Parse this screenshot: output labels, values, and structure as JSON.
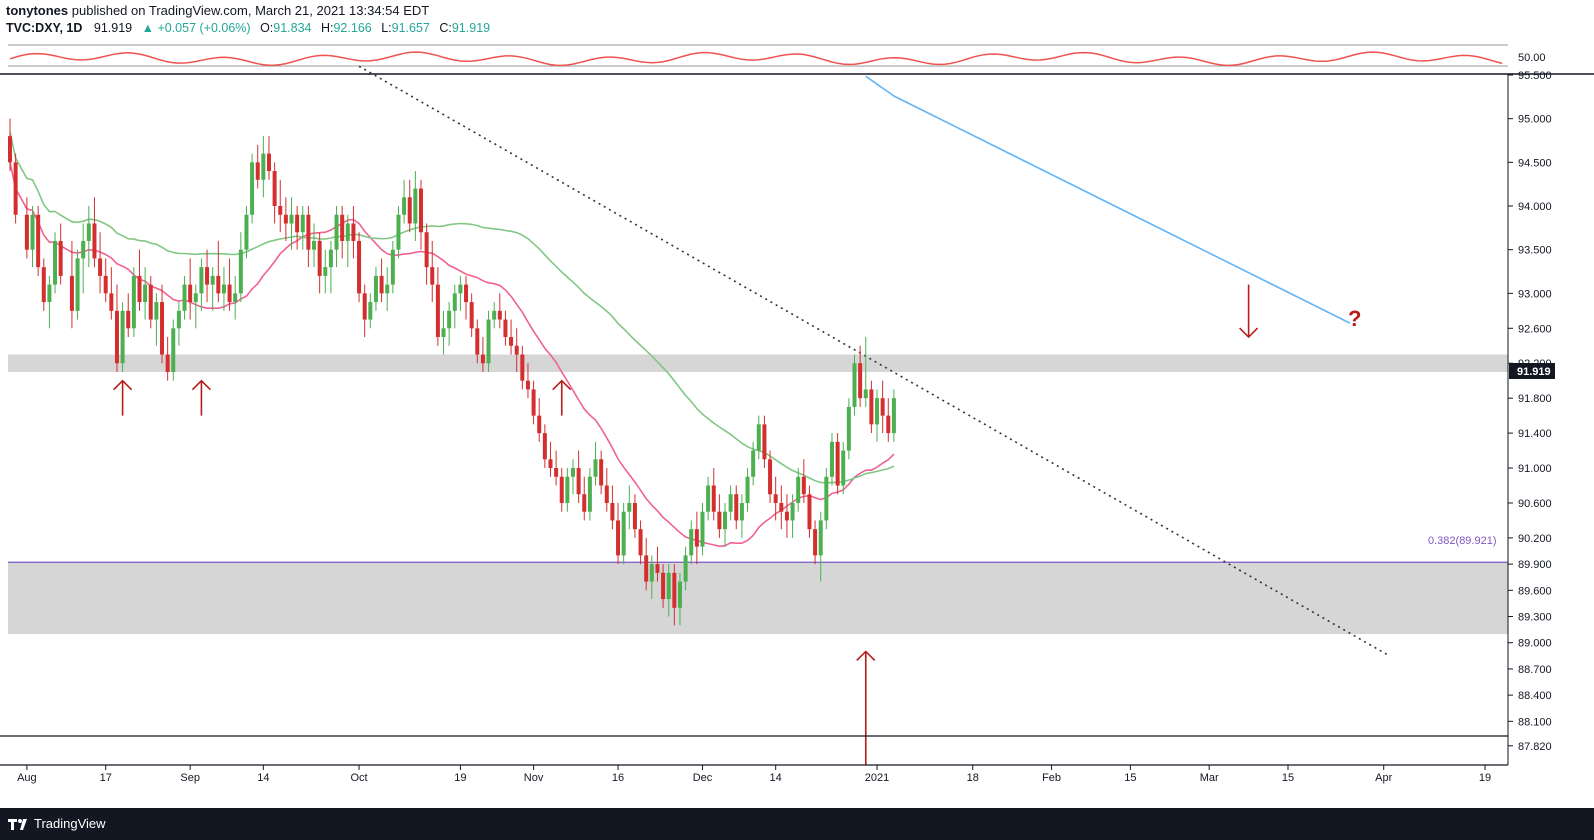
{
  "header": {
    "author": "tonytones",
    "published": "published on TradingView.com, March 21, 2021 13:34:54 EDT",
    "symbol": "TVC:DXY, 1D",
    "last": "91.919",
    "change": "▲ +0.057 (+0.06%)",
    "o_label": "O:",
    "o_value": "91.834",
    "h_label": "H:",
    "h_value": "92.166",
    "l_label": "L:",
    "l_value": "91.657",
    "c_label": "C:",
    "c_value": "91.919"
  },
  "footer": {
    "brand": "TradingView"
  },
  "colors": {
    "up": "#4caf50",
    "down": "#d32f2f",
    "ma_fast": "#f06292",
    "ma_mid": "#81c784",
    "ma_slow": "#64b5f6",
    "rsi": "#ef5350",
    "fib": "#7e57c2",
    "zone": "#d6d6d6",
    "arrow": "#b71c1c"
  },
  "chart_data": {
    "type": "candlestick",
    "symbol": "TVC:DXY",
    "interval": "1D",
    "price_axis": {
      "min": 87.6,
      "max": 95.5,
      "ticks": [
        "95.500",
        "95.000",
        "94.500",
        "94.000",
        "93.500",
        "93.000",
        "92.600",
        "92.200",
        "91.800",
        "91.400",
        "91.000",
        "90.600",
        "90.200",
        "89.900",
        "89.600",
        "89.300",
        "89.000",
        "88.700",
        "88.400",
        "88.100",
        "87.820"
      ],
      "current_price": "91.919"
    },
    "rsi_axis": {
      "min": 46,
      "max": 54,
      "ticks": [
        "50.00"
      ]
    },
    "time_axis": {
      "labels": [
        {
          "text": "Aug",
          "day": 3
        },
        {
          "text": "17",
          "day": 17
        },
        {
          "text": "Sep",
          "day": 32
        },
        {
          "text": "14",
          "day": 45
        },
        {
          "text": "Oct",
          "day": 62
        },
        {
          "text": "19",
          "day": 80
        },
        {
          "text": "Nov",
          "day": 93
        },
        {
          "text": "16",
          "day": 108
        },
        {
          "text": "Dec",
          "day": 123
        },
        {
          "text": "14",
          "day": 136
        },
        {
          "text": "2021",
          "day": 154
        },
        {
          "text": "18",
          "day": 171
        },
        {
          "text": "Feb",
          "day": 185
        },
        {
          "text": "15",
          "day": 199
        },
        {
          "text": "Mar",
          "day": 213
        },
        {
          "text": "15",
          "day": 227
        },
        {
          "text": "Apr",
          "day": 244
        },
        {
          "text": "19",
          "day": 262
        }
      ]
    },
    "annotations": {
      "fib_label": "0.382(89.921)",
      "fib_level": 89.921,
      "question_mark": "?"
    },
    "zones": [
      {
        "from": 92.1,
        "to": 92.3
      },
      {
        "from": 89.1,
        "to": 89.92
      }
    ],
    "arrows": [
      {
        "day": 20,
        "from": 91.6,
        "to": 92.0,
        "dir": "up"
      },
      {
        "day": 34,
        "from": 91.6,
        "to": 92.0,
        "dir": "up"
      },
      {
        "day": 98,
        "from": 91.6,
        "to": 92.0,
        "dir": "up"
      },
      {
        "day": 152,
        "from": 87.6,
        "to": 88.9,
        "dir": "up"
      },
      {
        "day": 220,
        "from": 93.1,
        "to": 92.5,
        "dir": "down"
      }
    ],
    "trendline": {
      "start": [
        62,
        95.6
      ],
      "end": [
        245,
        88.85
      ]
    },
    "candles": [
      [
        0,
        94.8,
        95.0,
        94.4,
        94.5
      ],
      [
        1,
        94.5,
        94.6,
        93.8,
        93.9
      ],
      [
        3,
        93.9,
        94.1,
        93.4,
        93.5
      ],
      [
        4,
        93.5,
        94.0,
        93.3,
        93.9
      ],
      [
        5,
        93.9,
        94.0,
        93.2,
        93.3
      ],
      [
        6,
        93.3,
        93.4,
        92.8,
        92.9
      ],
      [
        7,
        92.9,
        93.2,
        92.6,
        93.1
      ],
      [
        8,
        93.1,
        93.7,
        93.0,
        93.6
      ],
      [
        9,
        93.6,
        93.8,
        93.1,
        93.2
      ],
      [
        11,
        93.2,
        93.6,
        92.6,
        92.8
      ],
      [
        12,
        92.8,
        93.5,
        92.7,
        93.4
      ],
      [
        13,
        93.4,
        93.8,
        93.0,
        93.6
      ],
      [
        14,
        93.6,
        94.0,
        93.3,
        93.8
      ],
      [
        15,
        93.8,
        94.1,
        93.3,
        93.4
      ],
      [
        16,
        93.4,
        93.7,
        93.0,
        93.2
      ],
      [
        17,
        93.2,
        93.4,
        92.9,
        93.0
      ],
      [
        18,
        93.0,
        93.3,
        92.7,
        92.8
      ],
      [
        19,
        92.8,
        93.1,
        92.1,
        92.2
      ],
      [
        20,
        92.2,
        92.9,
        92.1,
        92.8
      ],
      [
        21,
        92.8,
        93.0,
        92.5,
        92.6
      ],
      [
        22,
        92.6,
        93.3,
        92.5,
        93.2
      ],
      [
        23,
        93.2,
        93.5,
        92.8,
        92.9
      ],
      [
        24,
        92.9,
        93.3,
        92.7,
        93.1
      ],
      [
        25,
        93.1,
        93.2,
        92.6,
        92.7
      ],
      [
        26,
        92.7,
        93.0,
        92.4,
        92.9
      ],
      [
        27,
        92.9,
        93.1,
        92.2,
        92.3
      ],
      [
        28,
        92.3,
        92.5,
        92.0,
        92.1
      ],
      [
        29,
        92.1,
        92.7,
        92.0,
        92.6
      ],
      [
        30,
        92.6,
        92.9,
        92.4,
        92.8
      ],
      [
        31,
        92.8,
        93.2,
        92.7,
        93.1
      ],
      [
        32,
        93.1,
        93.4,
        92.7,
        92.9
      ],
      [
        33,
        92.9,
        93.1,
        92.6,
        93.0
      ],
      [
        34,
        93.0,
        93.4,
        92.8,
        93.3
      ],
      [
        35,
        93.3,
        93.5,
        92.9,
        93.1
      ],
      [
        36,
        93.1,
        93.3,
        92.8,
        93.2
      ],
      [
        37,
        93.2,
        93.6,
        92.9,
        93.0
      ],
      [
        38,
        93.0,
        93.3,
        92.8,
        93.1
      ],
      [
        39,
        93.1,
        93.4,
        92.8,
        92.9
      ],
      [
        40,
        92.9,
        93.2,
        92.7,
        93.0
      ],
      [
        41,
        93.0,
        93.7,
        92.9,
        93.5
      ],
      [
        42,
        93.5,
        94.0,
        93.4,
        93.9
      ],
      [
        43,
        93.9,
        94.6,
        93.8,
        94.5
      ],
      [
        44,
        94.5,
        94.7,
        94.2,
        94.3
      ],
      [
        45,
        94.3,
        94.8,
        94.1,
        94.6
      ],
      [
        46,
        94.6,
        94.8,
        94.3,
        94.4
      ],
      [
        47,
        94.4,
        94.5,
        93.8,
        94.0
      ],
      [
        48,
        94.0,
        94.3,
        93.7,
        93.9
      ],
      [
        49,
        93.9,
        94.1,
        93.6,
        93.8
      ],
      [
        50,
        93.8,
        94.1,
        93.5,
        93.9
      ],
      [
        51,
        93.9,
        94.0,
        93.5,
        93.7
      ],
      [
        52,
        93.7,
        94.0,
        93.5,
        93.9
      ],
      [
        53,
        93.9,
        94.0,
        93.3,
        93.5
      ],
      [
        54,
        93.5,
        93.8,
        93.3,
        93.6
      ],
      [
        55,
        93.6,
        93.7,
        93.0,
        93.2
      ],
      [
        56,
        93.2,
        93.5,
        93.0,
        93.3
      ],
      [
        57,
        93.3,
        93.6,
        93.0,
        93.5
      ],
      [
        58,
        93.5,
        94.0,
        93.3,
        93.9
      ],
      [
        59,
        93.9,
        94.0,
        93.4,
        93.6
      ],
      [
        60,
        93.6,
        93.9,
        93.3,
        93.8
      ],
      [
        61,
        93.8,
        94.0,
        93.4,
        93.6
      ],
      [
        62,
        93.6,
        93.7,
        92.9,
        93.0
      ],
      [
        63,
        93.0,
        93.1,
        92.5,
        92.7
      ],
      [
        64,
        92.7,
        93.0,
        92.6,
        92.9
      ],
      [
        65,
        92.9,
        93.3,
        92.8,
        93.2
      ],
      [
        66,
        93.2,
        93.4,
        92.9,
        93.0
      ],
      [
        67,
        93.0,
        93.3,
        92.8,
        93.1
      ],
      [
        68,
        93.1,
        93.6,
        93.0,
        93.5
      ],
      [
        69,
        93.5,
        94.0,
        93.4,
        93.9
      ],
      [
        70,
        93.9,
        94.3,
        93.8,
        94.1
      ],
      [
        71,
        94.1,
        94.3,
        93.7,
        93.8
      ],
      [
        72,
        93.8,
        94.4,
        93.6,
        94.2
      ],
      [
        73,
        94.2,
        94.3,
        93.5,
        93.7
      ],
      [
        74,
        93.7,
        93.8,
        93.1,
        93.3
      ],
      [
        75,
        93.3,
        93.6,
        92.9,
        93.1
      ],
      [
        76,
        93.1,
        93.3,
        92.4,
        92.5
      ],
      [
        77,
        92.5,
        92.8,
        92.3,
        92.6
      ],
      [
        78,
        92.6,
        92.9,
        92.4,
        92.8
      ],
      [
        79,
        92.8,
        93.1,
        92.6,
        93.0
      ],
      [
        80,
        93.0,
        93.2,
        92.8,
        93.1
      ],
      [
        81,
        93.1,
        93.2,
        92.7,
        92.9
      ],
      [
        82,
        92.9,
        93.0,
        92.5,
        92.6
      ],
      [
        83,
        92.6,
        92.7,
        92.2,
        92.3
      ],
      [
        84,
        92.3,
        92.5,
        92.1,
        92.2
      ],
      [
        85,
        92.2,
        92.8,
        92.1,
        92.7
      ],
      [
        86,
        92.7,
        92.9,
        92.6,
        92.8
      ],
      [
        87,
        92.8,
        93.0,
        92.6,
        92.7
      ],
      [
        88,
        92.7,
        92.8,
        92.4,
        92.5
      ],
      [
        89,
        92.5,
        92.7,
        92.3,
        92.4
      ],
      [
        90,
        92.4,
        92.6,
        92.1,
        92.3
      ],
      [
        91,
        92.3,
        92.4,
        91.9,
        92.0
      ],
      [
        92,
        92.0,
        92.2,
        91.8,
        91.9
      ],
      [
        93,
        91.9,
        92.0,
        91.5,
        91.6
      ],
      [
        94,
        91.6,
        91.8,
        91.3,
        91.4
      ],
      [
        95,
        91.4,
        91.5,
        91.0,
        91.1
      ],
      [
        96,
        91.1,
        91.3,
        90.9,
        91.0
      ],
      [
        97,
        91.0,
        91.2,
        90.8,
        90.9
      ],
      [
        98,
        90.9,
        91.0,
        90.5,
        90.6
      ],
      [
        99,
        90.6,
        91.0,
        90.5,
        90.9
      ],
      [
        100,
        90.9,
        91.1,
        90.7,
        91.0
      ],
      [
        101,
        91.0,
        91.2,
        90.6,
        90.7
      ],
      [
        102,
        90.7,
        90.9,
        90.4,
        90.5
      ],
      [
        103,
        90.5,
        91.0,
        90.4,
        90.9
      ],
      [
        104,
        90.9,
        91.3,
        90.8,
        91.1
      ],
      [
        105,
        91.1,
        91.2,
        90.7,
        90.8
      ],
      [
        106,
        90.8,
        91.0,
        90.5,
        90.6
      ],
      [
        107,
        90.6,
        90.8,
        90.3,
        90.4
      ],
      [
        108,
        90.4,
        90.6,
        89.9,
        90.0
      ],
      [
        109,
        90.0,
        90.6,
        89.9,
        90.5
      ],
      [
        110,
        90.5,
        90.8,
        90.3,
        90.6
      ],
      [
        111,
        90.6,
        90.7,
        90.2,
        90.3
      ],
      [
        112,
        90.3,
        90.4,
        89.9,
        90.0
      ],
      [
        113,
        90.0,
        90.2,
        89.6,
        89.7
      ],
      [
        114,
        89.7,
        90.0,
        89.5,
        89.9
      ],
      [
        115,
        89.9,
        90.1,
        89.7,
        89.8
      ],
      [
        116,
        89.8,
        89.9,
        89.4,
        89.5
      ],
      [
        117,
        89.5,
        89.9,
        89.3,
        89.8
      ],
      [
        118,
        89.8,
        89.9,
        89.2,
        89.4
      ],
      [
        119,
        89.4,
        89.8,
        89.2,
        89.7
      ],
      [
        120,
        89.7,
        90.1,
        89.6,
        90.0
      ],
      [
        121,
        90.0,
        90.4,
        89.9,
        90.3
      ],
      [
        122,
        90.3,
        90.5,
        89.9,
        90.1
      ],
      [
        123,
        90.1,
        90.6,
        90.0,
        90.5
      ],
      [
        124,
        90.5,
        90.9,
        90.4,
        90.8
      ],
      [
        125,
        90.8,
        91.0,
        90.4,
        90.5
      ],
      [
        126,
        90.5,
        90.7,
        90.2,
        90.3
      ],
      [
        127,
        90.3,
        90.6,
        90.1,
        90.5
      ],
      [
        128,
        90.5,
        90.8,
        90.4,
        90.7
      ],
      [
        129,
        90.7,
        90.8,
        90.3,
        90.4
      ],
      [
        130,
        90.4,
        90.7,
        90.2,
        90.6
      ],
      [
        131,
        90.6,
        91.0,
        90.5,
        90.9
      ],
      [
        132,
        90.9,
        91.3,
        90.8,
        91.2
      ],
      [
        133,
        91.2,
        91.6,
        91.1,
        91.5
      ],
      [
        134,
        91.5,
        91.6,
        91.0,
        91.1
      ],
      [
        135,
        91.1,
        91.2,
        90.6,
        90.7
      ],
      [
        136,
        90.7,
        90.9,
        90.4,
        90.6
      ],
      [
        137,
        90.6,
        90.8,
        90.3,
        90.5
      ],
      [
        138,
        90.5,
        90.7,
        90.2,
        90.4
      ],
      [
        139,
        90.4,
        90.7,
        90.2,
        90.6
      ],
      [
        140,
        90.6,
        91.0,
        90.5,
        90.9
      ],
      [
        141,
        90.9,
        91.1,
        90.6,
        90.7
      ],
      [
        142,
        90.7,
        90.8,
        90.2,
        90.3
      ],
      [
        143,
        90.3,
        90.4,
        89.9,
        90.0
      ],
      [
        144,
        90.0,
        90.5,
        89.7,
        90.4
      ],
      [
        145,
        90.4,
        91.0,
        90.3,
        90.9
      ],
      [
        146,
        90.9,
        91.4,
        90.8,
        91.3
      ],
      [
        147,
        91.3,
        91.4,
        90.7,
        90.8
      ],
      [
        148,
        90.8,
        91.3,
        90.7,
        91.2
      ],
      [
        149,
        91.2,
        91.8,
        91.1,
        91.7
      ],
      [
        150,
        91.7,
        92.3,
        91.6,
        92.2
      ],
      [
        151,
        92.2,
        92.4,
        91.7,
        91.8
      ],
      [
        152,
        91.8,
        92.5,
        91.7,
        91.9
      ],
      [
        153,
        91.9,
        92.0,
        91.4,
        91.5
      ],
      [
        154,
        91.5,
        91.9,
        91.3,
        91.8
      ],
      [
        155,
        91.8,
        92.0,
        91.4,
        91.6
      ],
      [
        156,
        91.6,
        91.8,
        91.3,
        91.4
      ],
      [
        157,
        91.4,
        91.9,
        91.3,
        91.8
      ]
    ]
  }
}
